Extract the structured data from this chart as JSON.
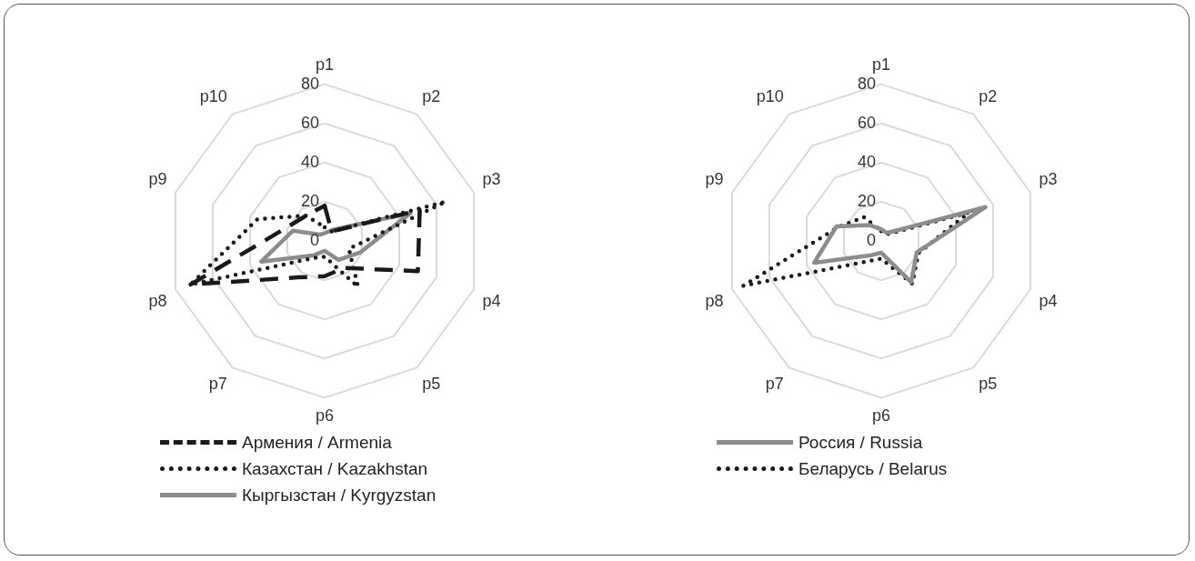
{
  "chart_data": [
    {
      "type": "radar",
      "categories": [
        "p1",
        "p2",
        "p3",
        "p4",
        "p5",
        "p6",
        "p7",
        "p8",
        "p9",
        "p10"
      ],
      "ylim": [
        0,
        80
      ],
      "yticks": [
        0,
        20,
        40,
        60,
        80
      ],
      "grid": true,
      "legend": "bottom",
      "series": [
        {
          "name": "Армения / Armenia",
          "color": "#1a1a1a",
          "line_style": "dashed",
          "values": [
            18,
            6,
            51,
            50,
            17,
            18,
            23,
            72,
            21,
            16
          ]
        },
        {
          "name": "Казахстан / Kazakhstan",
          "color": "#1a1a1a",
          "line_style": "dotted",
          "values": [
            7,
            6,
            65,
            13,
            29,
            8,
            11,
            72,
            36,
            16
          ]
        },
        {
          "name": "Кыргызстан / Kyrgyzstan",
          "color": "#8c8c8c",
          "line_style": "solid",
          "values": [
            4,
            7,
            46,
            19,
            12,
            5,
            9,
            34,
            17,
            4
          ]
        }
      ]
    },
    {
      "type": "radar",
      "categories": [
        "p1",
        "p2",
        "p3",
        "p4",
        "p5",
        "p6",
        "p7",
        "p8",
        "p9",
        "p10"
      ],
      "ylim": [
        0,
        80
      ],
      "yticks": [
        0,
        20,
        40,
        60,
        80
      ],
      "grid": true,
      "legend": "bottom",
      "series": [
        {
          "name": "Россия / Russia",
          "color": "#8c8c8c",
          "line_style": "solid",
          "values": [
            6,
            5,
            56,
            19,
            26,
            6,
            9,
            36,
            24,
            10
          ]
        },
        {
          "name": "Беларусь / Belarus",
          "color": "#1a1a1a",
          "line_style": "dotted",
          "values": [
            5,
            4,
            47,
            20,
            27,
            9,
            13,
            74,
            23,
            15
          ]
        }
      ]
    }
  ]
}
